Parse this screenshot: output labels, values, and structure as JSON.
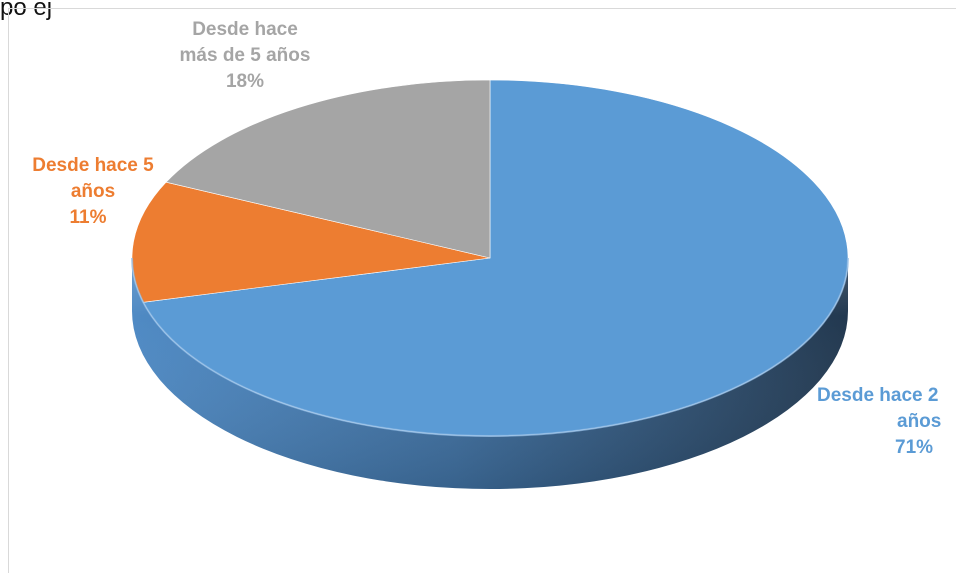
{
  "header_fragment": "po ej",
  "chart_data": {
    "type": "pie",
    "title": "",
    "start_angle_deg": 0,
    "direction": "clockwise",
    "slices": [
      {
        "label_line1": "Desde hace 2",
        "label_line2": "años",
        "value": 71,
        "value_label": "71%",
        "color": "#5b9bd5"
      },
      {
        "label_line1": "Desde hace 5",
        "label_line2": "años",
        "value": 11,
        "value_label": "11%",
        "color": "#ed7d31"
      },
      {
        "label_line1": "Desde hace",
        "label_line2": "más de 5 años",
        "value": 18,
        "value_label": "18%",
        "color": "#a5a5a5"
      }
    ],
    "legend": "none",
    "style": "3d-pie"
  }
}
